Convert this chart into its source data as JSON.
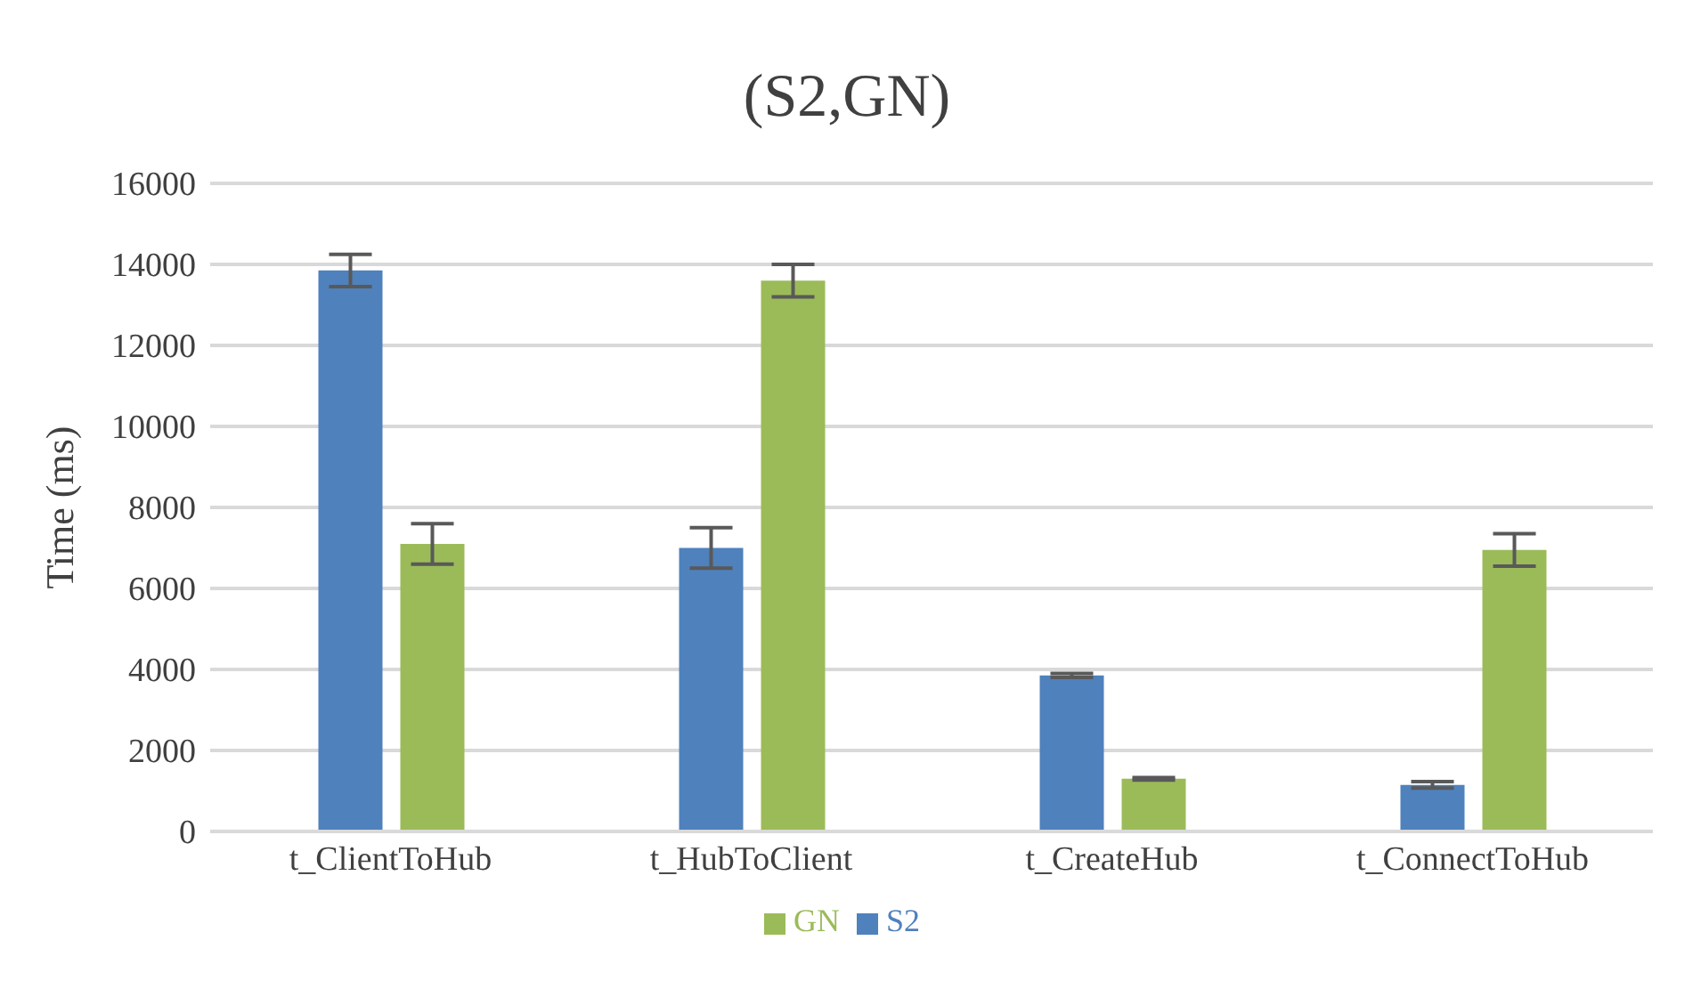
{
  "chart_data": {
    "type": "bar",
    "title": "(S2,GN)",
    "ylabel": "Time (ms)",
    "categories": [
      "t_ClientToHub",
      "t_HubToClient",
      "t_CreateHub",
      "t_ConnectToHub"
    ],
    "series": [
      {
        "name": "S2",
        "color": "#4f81bd",
        "values": [
          13850,
          7000,
          3850,
          1150
        ],
        "errors": [
          400,
          500,
          50,
          80
        ]
      },
      {
        "name": "GN",
        "color": "#9bbb59",
        "values": [
          7100,
          13600,
          1300,
          6950
        ],
        "errors": [
          500,
          400,
          30,
          400
        ]
      }
    ],
    "ylim": [
      0,
      16000
    ],
    "yticks": [
      0,
      2000,
      4000,
      6000,
      8000,
      10000,
      12000,
      14000,
      16000
    ],
    "grid": "y",
    "legend": "bottom"
  }
}
